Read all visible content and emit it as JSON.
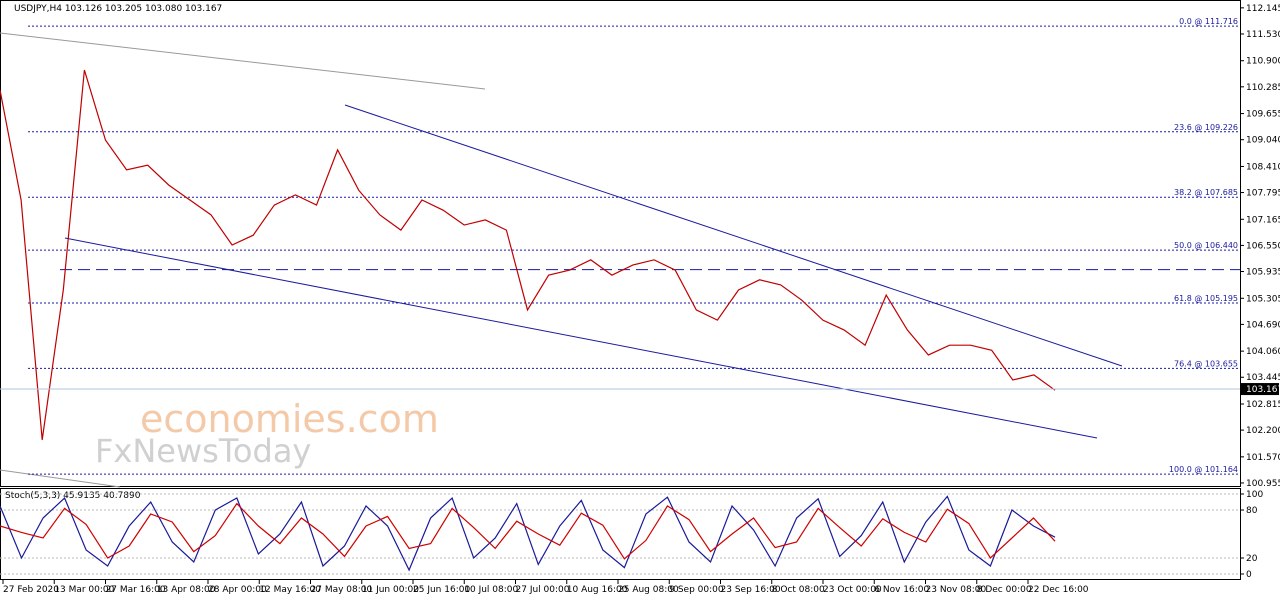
{
  "chart_data": [
    {
      "type": "line",
      "title": "USDJPY,H4  103.126 103.205 103.080 103.167",
      "color": "#c00000",
      "values": [
        110.21,
        107.62,
        101.97,
        105.5,
        110.68,
        109.03,
        108.33,
        108.44,
        107.97,
        107.62,
        107.27,
        106.56,
        106.79,
        107.5,
        107.74,
        107.5,
        108.8,
        107.85,
        107.27,
        106.91,
        107.62,
        107.38,
        107.03,
        107.15,
        106.91,
        105.03,
        105.85,
        105.97,
        106.21,
        105.85,
        106.09,
        106.21,
        105.97,
        105.03,
        104.79,
        105.5,
        105.74,
        105.62,
        105.26,
        104.79,
        104.56,
        104.2,
        105.38,
        104.56,
        103.97,
        104.2,
        104.2,
        104.08,
        103.38,
        103.5,
        103.14
      ],
      "ylim": [
        100.86,
        112.33
      ],
      "yticks": [
        112.145,
        {
          "value": 111.53,
          "label": "111.530"
        },
        {
          "value": 110.9,
          "label": "110.900"
        },
        110.285,
        109.655,
        {
          "value": 109.04,
          "label": "109.040"
        },
        {
          "value": 108.41,
          "label": "108.410"
        },
        107.795,
        107.165,
        {
          "value": 106.55,
          "label": "106.550"
        },
        105.935,
        105.305,
        {
          "value": 104.69,
          "label": "104.690"
        },
        {
          "value": 104.06,
          "label": "104.060"
        },
        103.445,
        102.815,
        {
          "value": 102.2,
          "label": "102.200"
        },
        {
          "value": 101.57,
          "label": "101.570"
        },
        100.955
      ],
      "fib_levels": [
        {
          "value": 111.716,
          "label": "0.0 @ 111.716"
        },
        {
          "value": 109.226,
          "label": "23.6 @ 109.226"
        },
        {
          "value": 107.685,
          "label": "38.2 @ 107.685"
        },
        {
          "value": 106.44,
          "label": "50.0 @ 106.440"
        },
        {
          "value": 105.195,
          "label": "61.8 @ 105.195"
        },
        {
          "value": 103.655,
          "label": "76.4 @ 103.655"
        },
        {
          "value": 101.164,
          "label": "100.0 @ 101.164"
        }
      ],
      "horizontal_line": 105.98,
      "last_price": 103.167,
      "x_labels": [
        "27 Feb 2020",
        "13 Mar 00:00",
        "27 Mar 16:00",
        "13 Apr 08:00",
        "28 Apr 00:00",
        "12 May 16:00",
        "27 May 08:00",
        "11 Jun 00:00",
        "25 Jun 16:00",
        "10 Jul 08:00",
        "27 Jul 00:00",
        "10 Aug 16:00",
        "25 Aug 08:00",
        "9 Sep 00:00",
        "23 Sep 16:00",
        "8 Oct 08:00",
        "23 Oct 00:00",
        "6 Nov 16:00",
        "23 Nov 08:00",
        "8 Dec 00:00",
        "22 Dec 16:00"
      ]
    },
    {
      "type": "line",
      "title": "Stoch(5,3,3) 45.9135 40.7890",
      "series": [
        {
          "color": "#1a1a9a",
          "values": [
            85,
            20,
            70,
            95,
            30,
            10,
            60,
            90,
            40,
            15,
            80,
            95,
            25,
            50,
            90,
            10,
            35,
            85,
            60,
            5,
            70,
            95,
            20,
            45,
            88,
            12,
            60,
            92,
            30,
            8,
            75,
            96,
            40,
            15,
            85,
            55,
            10,
            70,
            94,
            22,
            48,
            90,
            15,
            65,
            97,
            30,
            10,
            80,
            60,
            46
          ]
        },
        {
          "color": "#d00000",
          "values": [
            60,
            52,
            45,
            82,
            62,
            20,
            35,
            75,
            65,
            28,
            48,
            88,
            60,
            38,
            70,
            50,
            22,
            60,
            72,
            32,
            38,
            82,
            58,
            32,
            66,
            50,
            36,
            76,
            61,
            19,
            42,
            85,
            68,
            28,
            50,
            70,
            33,
            40,
            82,
            58,
            35,
            69,
            52,
            40,
            81,
            63,
            20,
            45,
            70,
            41
          ]
        }
      ],
      "ylim": [
        -7.5,
        107.5
      ],
      "yticks": [
        0,
        20,
        80,
        100
      ]
    }
  ],
  "watermark": {
    "line1": "economies.com",
    "line2": "FxNewsToday"
  }
}
